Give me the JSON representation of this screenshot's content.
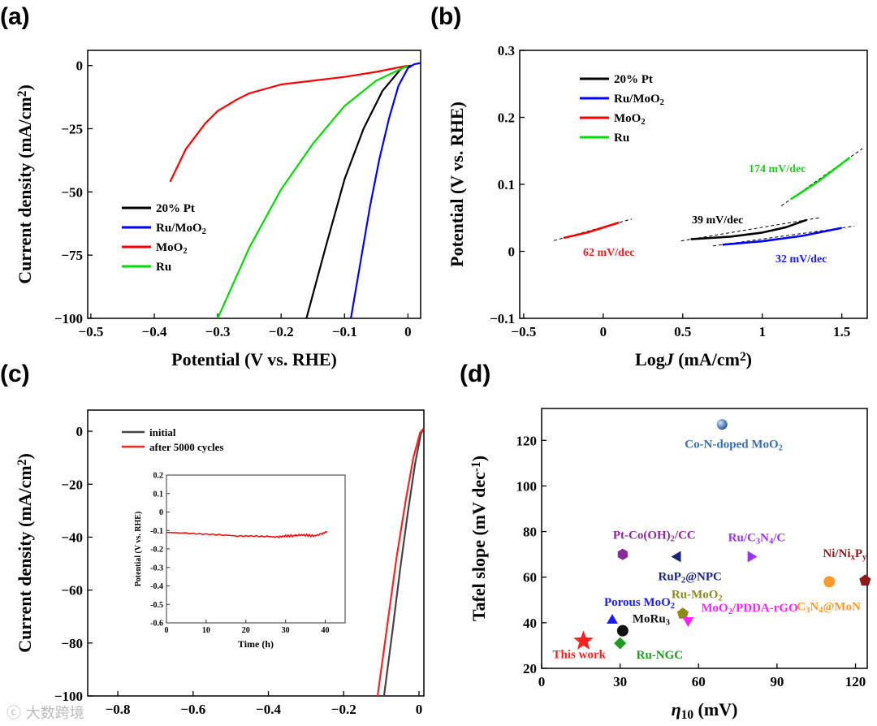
{
  "watermark": "大数跨境",
  "chart_data": [
    {
      "panel": "(a)",
      "type": "line",
      "xlabel": "Potential (V vs. RHE)",
      "ylabel": [
        {
          "t": "Current density (mA/cm"
        },
        {
          "t": "2",
          "sup": true
        },
        {
          "t": ")"
        }
      ],
      "xlim": [
        -0.505,
        0.02
      ],
      "ylim": [
        -100,
        6
      ],
      "xticks": [
        -0.5,
        -0.4,
        -0.3,
        -0.2,
        -0.1,
        0
      ],
      "yticks": [
        0,
        -25,
        -50,
        -75,
        -100
      ],
      "legend_position": "center-left",
      "series": [
        {
          "name": [
            {
              "t": "20% Pt"
            }
          ],
          "color": "#000000",
          "x": [
            -0.16,
            -0.13,
            -0.1,
            -0.07,
            -0.04,
            -0.01,
            0.005
          ],
          "y": [
            -100,
            -72,
            -45,
            -25,
            -10,
            -1,
            0
          ]
        },
        {
          "name": [
            {
              "t": "Ru/MoO"
            },
            {
              "t": "2",
              "sub": true
            }
          ],
          "color": "#0000ff",
          "x": [
            -0.09,
            -0.075,
            -0.06,
            -0.045,
            -0.03,
            -0.015,
            0,
            0.01,
            0.02
          ],
          "y": [
            -100,
            -78,
            -56,
            -37,
            -21,
            -8,
            -1,
            0.5,
            1
          ]
        },
        {
          "name": [
            {
              "t": "MoO"
            },
            {
              "t": "2",
              "sub": true
            }
          ],
          "color": "#ff0000",
          "x": [
            -0.375,
            -0.35,
            -0.32,
            -0.3,
            -0.27,
            -0.25,
            -0.2,
            -0.15,
            -0.1,
            -0.05,
            0
          ],
          "y": [
            -46,
            -33,
            -23,
            -18,
            -13.5,
            -11,
            -7.5,
            -6,
            -4.5,
            -2.5,
            0
          ]
        },
        {
          "name": [
            {
              "t": "Ru"
            }
          ],
          "color": "#00dd00",
          "x": [
            -0.3,
            -0.25,
            -0.2,
            -0.15,
            -0.1,
            -0.05,
            0
          ],
          "y": [
            -100,
            -72,
            -49,
            -31,
            -16,
            -6,
            0
          ]
        }
      ]
    },
    {
      "panel": "(b)",
      "type": "line",
      "xlabel": [
        {
          "t": "Log"
        },
        {
          "t": "J",
          "i": true
        },
        {
          "t": " (mA/cm"
        },
        {
          "t": "2",
          "sup": true
        },
        {
          "t": ")"
        }
      ],
      "ylabel": "Potential (V vs. RHE)",
      "xlim": [
        -0.525,
        1.66
      ],
      "ylim": [
        -0.1,
        0.3
      ],
      "xticks": [
        -0.5,
        0,
        0.5,
        1,
        1.5
      ],
      "yticks": [
        -0.1,
        0,
        0.1,
        0.2,
        0.3
      ],
      "legend_position": "top-left",
      "series": [
        {
          "name": [
            {
              "t": "20% Pt"
            }
          ],
          "color": "#000000",
          "x": [
            0.55,
            0.8,
            1.0,
            1.15,
            1.28
          ],
          "y": [
            0.018,
            0.022,
            0.028,
            0.036,
            0.047
          ],
          "slope": "39 mV/dec"
        },
        {
          "name": [
            {
              "t": "Ru/MoO"
            },
            {
              "t": "2",
              "sub": true
            }
          ],
          "color": "#0000ff",
          "x": [
            0.75,
            1.0,
            1.25,
            1.5
          ],
          "y": [
            0.01,
            0.015,
            0.023,
            0.035
          ],
          "slope": "32 mV/dec"
        },
        {
          "name": [
            {
              "t": "MoO"
            },
            {
              "t": "2",
              "sub": true
            }
          ],
          "color": "#ff0000",
          "x": [
            -0.25,
            -0.1,
            0.1
          ],
          "y": [
            0.02,
            0.028,
            0.043
          ],
          "slope": "62 mV/dec"
        },
        {
          "name": [
            {
              "t": "Ru"
            }
          ],
          "color": "#00dd00",
          "x": [
            1.18,
            1.35,
            1.55
          ],
          "y": [
            0.078,
            0.104,
            0.14
          ],
          "slope": "174 mV/dec"
        }
      ]
    },
    {
      "panel": "(c)",
      "type": "line",
      "xlabel": "Potential (V vs. RHE)",
      "ylabel": [
        {
          "t": "Current density (mA/cm"
        },
        {
          "t": "2",
          "sup": true
        },
        {
          "t": ")"
        }
      ],
      "xlim": [
        -0.88,
        0.013
      ],
      "ylim": [
        -100,
        8
      ],
      "xticks": [
        -0.8,
        -0.6,
        -0.4,
        -0.2,
        0
      ],
      "yticks": [
        0,
        -20,
        -40,
        -60,
        -80,
        -100
      ],
      "legend_position": "top-left",
      "series": [
        {
          "name": [
            {
              "t": "initial"
            }
          ],
          "color": "#444444",
          "x": [
            -0.093,
            -0.07,
            -0.05,
            -0.03,
            -0.01,
            0.005,
            0.012
          ],
          "y": [
            -100,
            -75,
            -52,
            -31,
            -12,
            -1,
            1
          ]
        },
        {
          "name": [
            {
              "t": "after 5000 cycles"
            }
          ],
          "color": "#ff2222",
          "x": [
            -0.11,
            -0.085,
            -0.06,
            -0.035,
            -0.015,
            0.003,
            0.012
          ],
          "y": [
            -100,
            -74,
            -48,
            -26,
            -10,
            -0.5,
            1
          ]
        }
      ],
      "inset": {
        "type": "line",
        "xlabel": "Time (h)",
        "ylabel": "Potential (V vs. RHE)",
        "xlim": [
          0,
          45
        ],
        "ylim": [
          -0.6,
          0.2
        ],
        "xticks": [
          0,
          10,
          20,
          30,
          40
        ],
        "yticks": [
          0.2,
          0.1,
          0,
          -0.1,
          -0.2,
          -0.3,
          -0.4,
          -0.5,
          -0.6
        ],
        "color": "#ff0000",
        "x": [
          0,
          5,
          10,
          15,
          18,
          22,
          26,
          28,
          30,
          32,
          33,
          35,
          37,
          39,
          40.5
        ],
        "y": [
          -0.11,
          -0.115,
          -0.12,
          -0.125,
          -0.13,
          -0.13,
          -0.133,
          -0.136,
          -0.13,
          -0.128,
          -0.125,
          -0.124,
          -0.13,
          -0.12,
          -0.105
        ]
      }
    },
    {
      "panel": "(d)",
      "type": "scatter",
      "xlabel": [
        {
          "t": "η",
          "i": true
        },
        {
          "t": "10",
          "sub": true
        },
        {
          "t": " (mV)"
        }
      ],
      "ylabel": [
        {
          "t": "Tafel slope (mV dec"
        },
        {
          "t": "-1",
          "sup": true
        },
        {
          "t": ")"
        }
      ],
      "xlim": [
        0,
        124.5
      ],
      "ylim": [
        20,
        134
      ],
      "xticks": [
        0,
        30,
        60,
        90,
        120
      ],
      "yticks": [
        20,
        40,
        60,
        80,
        100,
        120
      ],
      "points": [
        {
          "label": [
            {
              "t": "This work"
            }
          ],
          "x": 16,
          "y": 32,
          "marker": "star",
          "color": "#ff2020",
          "lx": -38,
          "ly": -2
        },
        {
          "label": [
            {
              "t": "Porous MoO"
            },
            {
              "t": "2",
              "sub": true
            }
          ],
          "x": 27,
          "y": 41,
          "marker": "triangle-up",
          "color": "#1a1aff",
          "lx": -10,
          "ly": 9
        },
        {
          "label": [
            {
              "t": "MoRu"
            },
            {
              "t": "3",
              "sub": true
            }
          ],
          "x": 31,
          "y": 36.5,
          "marker": "circle",
          "color": "#111111",
          "lx": 12,
          "ly": 1
        },
        {
          "label": [
            {
              "t": "Ru-NGC"
            }
          ],
          "x": 30,
          "y": 31,
          "marker": "diamond",
          "color": "#229922",
          "lx": 20,
          "ly": 0
        },
        {
          "label": [
            {
              "t": "Pt-Co(OH)"
            },
            {
              "t": "2",
              "sub": true
            },
            {
              "t": "/CC"
            }
          ],
          "x": 31,
          "y": 70,
          "marker": "hexagon",
          "color": "#8a2a9a",
          "lx": -12,
          "ly": 10
        },
        {
          "label": [
            {
              "t": "RuP"
            },
            {
              "t": "2",
              "sub": true
            },
            {
              "t": "@NPC"
            }
          ],
          "x": 52,
          "y": 69,
          "marker": "triangle-left",
          "color": "#1a237e",
          "lx": -24,
          "ly": -10
        },
        {
          "label": [
            {
              "t": "Ru-MoO"
            },
            {
              "t": "2",
              "sub": true
            }
          ],
          "x": 54,
          "y": 44,
          "marker": "pentagon",
          "color": "#8b8b1a",
          "lx": -14,
          "ly": 10
        },
        {
          "label": [
            {
              "t": "MoO"
            },
            {
              "t": "2",
              "sub": true
            },
            {
              "t": "/PDDA-rGO"
            }
          ],
          "x": 56,
          "y": 41,
          "marker": "triangle-down",
          "color": "#ff22ff",
          "lx": 16,
          "ly": 2
        },
        {
          "label": [
            {
              "t": "Co-N-doped MoO"
            },
            {
              "t": "2",
              "sub": true
            }
          ],
          "x": 69,
          "y": 127,
          "marker": "sphere",
          "color": "#3a6fb0",
          "lx": -46,
          "ly": -10
        },
        {
          "label": [
            {
              "t": "Ru/C"
            },
            {
              "t": "3",
              "sub": true
            },
            {
              "t": "N"
            },
            {
              "t": "4",
              "sub": true
            },
            {
              "t": "/C"
            }
          ],
          "x": 80,
          "y": 69,
          "marker": "triangle-right",
          "color": "#9933ff",
          "lx": -28,
          "ly": 10
        },
        {
          "label": [
            {
              "t": "C"
            },
            {
              "t": "3",
              "sub": true
            },
            {
              "t": "N"
            },
            {
              "t": "4",
              "sub": true
            },
            {
              "t": "@MoN"
            }
          ],
          "x": 110,
          "y": 58,
          "marker": "circle",
          "color": "#ff9a2a",
          "lx": -40,
          "ly": -16
        },
        {
          "label": [
            {
              "t": "Ni/Ni"
            },
            {
              "t": "x",
              "sub": true
            },
            {
              "t": "P"
            },
            {
              "t": "y",
              "sub": true
            }
          ],
          "x": 129,
          "y": 58.5,
          "marker": "pentagon",
          "color": "#8b1a1a",
          "lx": -52,
          "ly": 20
        }
      ]
    }
  ]
}
